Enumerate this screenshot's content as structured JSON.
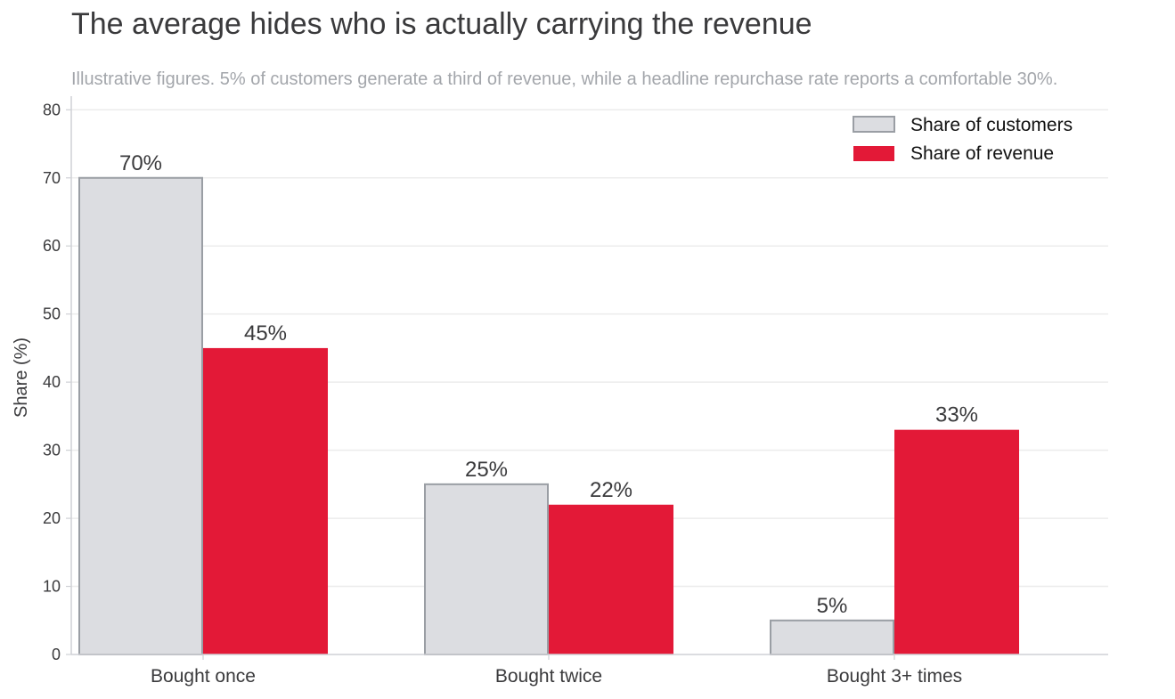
{
  "title": "The average hides who is actually carrying the revenue",
  "subtitle": "Illustrative figures. 5% of customers generate a third of revenue, while a headline repurchase rate reports a comfortable 30%.",
  "colors": {
    "customers_fill": "#dcdde1",
    "customers_stroke": "#9a9ea4",
    "revenue_fill": "#e31937",
    "grid": "#ececec",
    "axis": "#cfd1d5"
  },
  "chart_data": {
    "type": "bar",
    "categories": [
      "Bought once",
      "Bought twice",
      "Bought 3+ times"
    ],
    "series": [
      {
        "name": "Share of customers",
        "values": [
          70,
          25,
          5
        ],
        "labels": [
          "70%",
          "25%",
          "5%"
        ]
      },
      {
        "name": "Share of revenue",
        "values": [
          45,
          22,
          33
        ],
        "labels": [
          "45%",
          "22%",
          "33%"
        ]
      }
    ],
    "ylabel": "Share (%)",
    "ylim": [
      0,
      82
    ],
    "yticks": [
      0,
      10,
      20,
      30,
      40,
      50,
      60,
      70,
      80
    ],
    "grid": true,
    "legend_position": "top-right"
  }
}
